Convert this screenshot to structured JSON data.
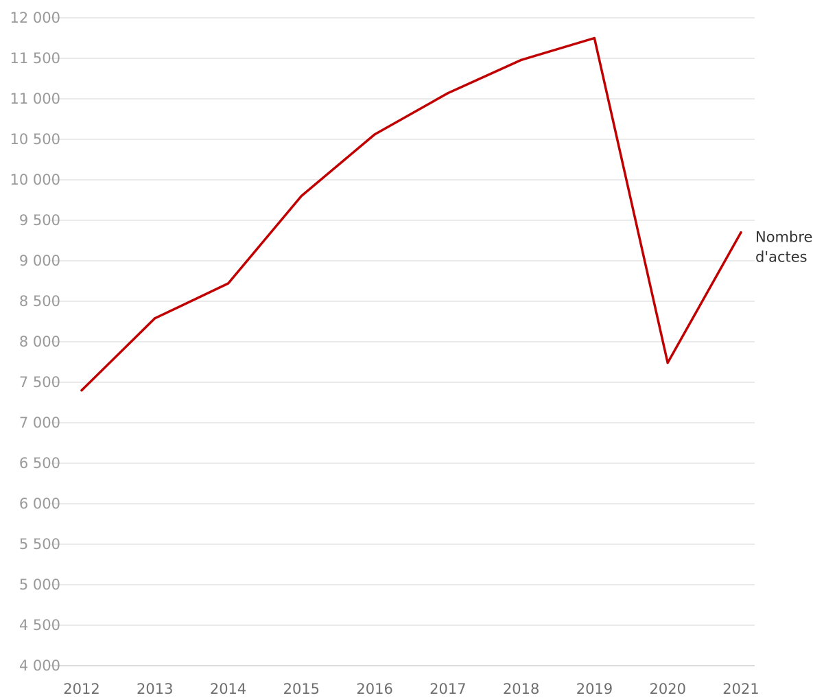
{
  "chart_data": {
    "type": "line",
    "title": "",
    "xlabel": "",
    "ylabel": "",
    "categories": [
      "2012",
      "2013",
      "2014",
      "2015",
      "2016",
      "2017",
      "2018",
      "2019",
      "2020",
      "2021"
    ],
    "series": [
      {
        "name": "Nombre d'actes",
        "label_lines": [
          "Nombre",
          "d'actes"
        ],
        "color": "#c00000",
        "values": [
          7400,
          8290,
          8720,
          9800,
          10560,
          11070,
          11480,
          11750,
          7740,
          9350
        ]
      }
    ],
    "ylim": [
      4000,
      12000
    ],
    "yticks": [
      4000,
      4500,
      5000,
      5500,
      6000,
      6500,
      7000,
      7500,
      8000,
      8500,
      9000,
      9500,
      10000,
      10500,
      11000,
      11500,
      12000
    ],
    "ytick_labels": [
      "4 000",
      "4 500",
      "5 000",
      "5 500",
      "6 000",
      "6 500",
      "7 000",
      "7 500",
      "8 000",
      "8 500",
      "9 000",
      "9 500",
      "10 000",
      "10 500",
      "11 000",
      "11 500",
      "12 000"
    ],
    "grid": true,
    "legend": "direct label at line end (right)"
  }
}
